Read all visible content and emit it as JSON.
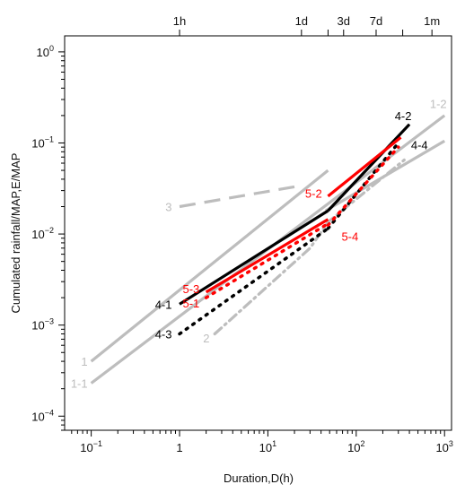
{
  "chart_data": {
    "type": "line",
    "x_scale": "log",
    "y_scale": "log",
    "xlabel": "Duration,D(h)",
    "ylabel": "Cumulated rainfall/MAP,E/MAP",
    "xlim": [
      0.05,
      1200
    ],
    "ylim": [
      7e-05,
      1.5
    ],
    "x_ticks": [
      {
        "value": 0.1,
        "base": "10",
        "exp": "−1"
      },
      {
        "value": 1,
        "text": "1"
      },
      {
        "value": 10,
        "base": "10",
        "exp": "1"
      },
      {
        "value": 100,
        "base": "10",
        "exp": "2"
      },
      {
        "value": 1000,
        "base": "10",
        "exp": "3"
      }
    ],
    "y_ticks": [
      {
        "value": 0.0001,
        "base": "10",
        "exp": "−4"
      },
      {
        "value": 0.001,
        "base": "10",
        "exp": "−3"
      },
      {
        "value": 0.01,
        "base": "10",
        "exp": "−2"
      },
      {
        "value": 0.1,
        "base": "10",
        "exp": "−1"
      },
      {
        "value": 1,
        "base": "10",
        "exp": "0"
      }
    ],
    "top_ticks": [
      {
        "value": 1,
        "label": "1h"
      },
      {
        "value": 24,
        "label": "1d"
      },
      {
        "value": 48,
        "label": ""
      },
      {
        "value": 72,
        "label": "3d"
      },
      {
        "value": 168,
        "label": "7d"
      },
      {
        "value": 336,
        "label": ""
      },
      {
        "value": 720,
        "label": "1m"
      }
    ],
    "series": [
      {
        "name": "1",
        "color": "#bdbdbd",
        "style": "solid",
        "points": [
          [
            0.1,
            0.0004
          ],
          [
            48,
            0.05
          ]
        ],
        "label_at": [
          0.1,
          0.0004
        ],
        "label_side": "left"
      },
      {
        "name": "1-1",
        "color": "#bdbdbd",
        "style": "solid",
        "points": [
          [
            0.1,
            0.00023
          ],
          [
            1000,
            0.2
          ]
        ],
        "label_at": [
          0.1,
          0.00023
        ],
        "label_side": "left"
      },
      {
        "name": "1-2",
        "color": "#bdbdbd",
        "style": "solid",
        "points": [
          [
            45,
            0.018
          ],
          [
            1000,
            0.105
          ]
        ],
        "label_at": [
          850,
          0.27
        ],
        "label_side": "center"
      },
      {
        "name": "3",
        "color": "#bdbdbd",
        "style": "dash",
        "points": [
          [
            1,
            0.02
          ],
          [
            20,
            0.033
          ]
        ],
        "label_at": [
          0.9,
          0.02
        ],
        "label_side": "left"
      },
      {
        "name": "2",
        "color": "#bdbdbd",
        "style": "dashdot",
        "points": [
          [
            2.5,
            0.0008
          ],
          [
            30,
            0.007
          ],
          [
            48,
            0.0135
          ],
          [
            350,
            0.065
          ]
        ],
        "label_at": [
          2.4,
          0.00072
        ],
        "label_side": "left"
      },
      {
        "name": "4-1",
        "color": "#000000",
        "style": "solid",
        "points": [
          [
            1,
            0.0017
          ],
          [
            48,
            0.018
          ]
        ],
        "label_at": [
          0.9,
          0.0017
        ],
        "label_side": "left"
      },
      {
        "name": "4-2",
        "color": "#000000",
        "style": "solid",
        "points": [
          [
            48,
            0.018
          ],
          [
            400,
            0.16
          ]
        ],
        "label_at": [
          340,
          0.2
        ],
        "label_side": "center"
      },
      {
        "name": "4-3",
        "color": "#000000",
        "style": "dot",
        "points": [
          [
            1,
            0.0008
          ],
          [
            48,
            0.0115
          ]
        ],
        "label_at": [
          0.9,
          0.0008
        ],
        "label_side": "left"
      },
      {
        "name": "4-4",
        "color": "#000000",
        "style": "dot",
        "points": [
          [
            48,
            0.0115
          ],
          [
            300,
            0.1
          ]
        ],
        "label_at": [
          520,
          0.095
        ],
        "label_side": "center"
      },
      {
        "name": "5-3",
        "color": "#ff0000",
        "style": "solid",
        "points": [
          [
            2,
            0.0023
          ],
          [
            48,
            0.0145
          ]
        ],
        "label_at": [
          1.85,
          0.0025
        ],
        "label_side": "left"
      },
      {
        "name": "5-2",
        "color": "#ff0000",
        "style": "solid",
        "points": [
          [
            48,
            0.026
          ],
          [
            320,
            0.115
          ]
        ],
        "label_at": [
          45,
          0.028
        ],
        "label_side": "left"
      },
      {
        "name": "5-1",
        "color": "#ff0000",
        "style": "dot",
        "points": [
          [
            2,
            0.002
          ],
          [
            48,
            0.013
          ]
        ],
        "label_at": [
          1.85,
          0.00175
        ],
        "label_side": "left"
      },
      {
        "name": "5-4",
        "color": "#ff0000",
        "style": "dot",
        "points": [
          [
            48,
            0.0125
          ],
          [
            300,
            0.09
          ]
        ],
        "label_at": [
          85,
          0.0095
        ],
        "label_side": "center"
      }
    ]
  }
}
